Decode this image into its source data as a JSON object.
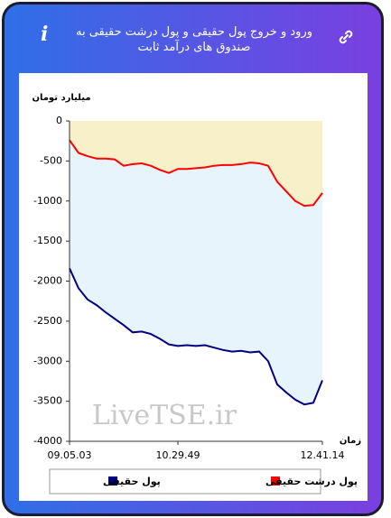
{
  "header": {
    "title": "ورود و خروج پول حقیقی و پول درشت حقیقی به صندوق های درآمد ثابت"
  },
  "chart_data": {
    "type": "area-line",
    "y_label": "میلیارد تومان",
    "x_label": "زمان",
    "watermark": "LiveTSE.ir",
    "categories": [
      "09.05.03",
      null,
      null,
      null,
      null,
      null,
      null,
      null,
      null,
      null,
      null,
      null,
      "10.29.49",
      null,
      null,
      null,
      null,
      null,
      null,
      null,
      null,
      null,
      null,
      null,
      null,
      null,
      null,
      null,
      "12.41.14"
    ],
    "series": [
      {
        "name": "پول درشت حقیقی",
        "color": "#ff0000",
        "fill": "#f7f0c8",
        "values": [
          -240,
          -400,
          -440,
          -470,
          -470,
          -480,
          -560,
          -540,
          -530,
          -560,
          -610,
          -650,
          -600,
          -600,
          -590,
          -580,
          -560,
          -550,
          -550,
          -540,
          -520,
          -530,
          -560,
          -760,
          -880,
          -1000,
          -1060,
          -1050,
          -900
        ]
      },
      {
        "name": "پول حقیقی",
        "color": "#000080",
        "fill": "#e8f4fb",
        "values": [
          -1840,
          -2090,
          -2230,
          -2300,
          -2390,
          -2470,
          -2550,
          -2640,
          -2630,
          -2660,
          -2720,
          -2790,
          -2810,
          -2800,
          -2810,
          -2800,
          -2830,
          -2860,
          -2880,
          -2870,
          -2890,
          -2880,
          -3000,
          -3290,
          -3390,
          -3480,
          -3540,
          -3520,
          -3240
        ]
      }
    ],
    "ylim": [
      -4000,
      0
    ],
    "yticks": [
      0,
      -500,
      -1000,
      -1500,
      -2000,
      -2500,
      -3000,
      -3500,
      -4000
    ]
  }
}
